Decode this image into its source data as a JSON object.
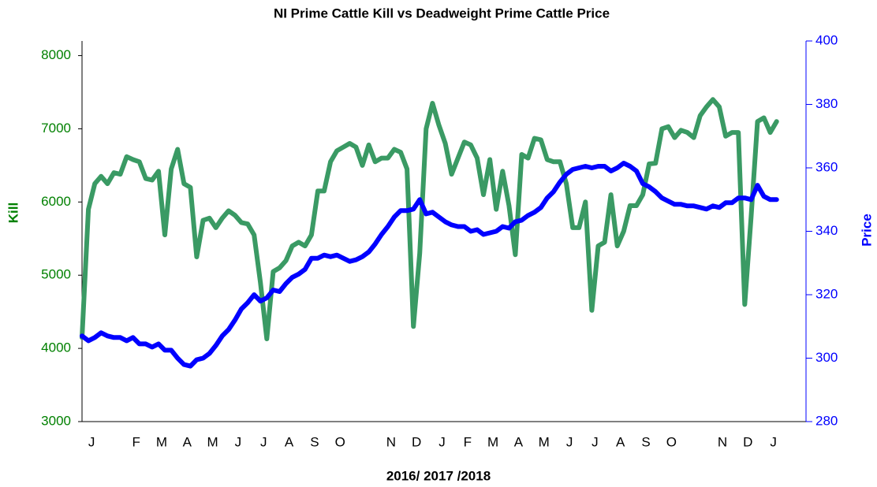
{
  "chart_data": {
    "type": "line",
    "title": "NI Prime Cattle Kill vs Deadweight Prime Cattle Price",
    "xlabel": "2016/ 2017 /2018",
    "ylabel": "Kill",
    "y2label": "Price",
    "categories": [
      null,
      "J",
      null,
      null,
      null,
      null,
      null,
      null,
      "F",
      null,
      null,
      null,
      "M",
      null,
      null,
      null,
      "A",
      null,
      null,
      null,
      "M",
      null,
      null,
      null,
      "J",
      null,
      null,
      null,
      "J",
      null,
      null,
      null,
      "A",
      null,
      null,
      null,
      "S",
      null,
      null,
      null,
      "O",
      null,
      null,
      null,
      null,
      null,
      null,
      null,
      "N",
      null,
      null,
      null,
      "D",
      null,
      null,
      null,
      "J",
      null,
      null,
      null,
      "F",
      null,
      null,
      null,
      "M",
      null,
      null,
      null,
      "A",
      null,
      null,
      null,
      "M",
      null,
      null,
      null,
      "J",
      null,
      null,
      null,
      "J",
      null,
      null,
      null,
      "A",
      null,
      null,
      null,
      "S",
      null,
      null,
      null,
      "O",
      null,
      null,
      null,
      null,
      null,
      null,
      null,
      "N",
      null,
      null,
      null,
      "D",
      null,
      null,
      null,
      "J",
      null
    ],
    "series": [
      {
        "color": "#3a9a64",
        "axis": "y",
        "values": [
          4150,
          5900,
          6250,
          6350,
          6250,
          6400,
          6380,
          6620,
          6580,
          6550,
          6320,
          6300,
          6420,
          5550,
          6450,
          6720,
          6250,
          6200,
          5250,
          5750,
          5780,
          5650,
          5780,
          5880,
          5820,
          5720,
          5700,
          5550,
          4900,
          4130,
          5050,
          5100,
          5200,
          5400,
          5450,
          5400,
          5550,
          6150,
          6150,
          6550,
          6700,
          6750,
          6800,
          6750,
          6500,
          6780,
          6550,
          6600,
          6600,
          6720,
          6680,
          6450,
          4300,
          5300,
          7000,
          7350,
          7050,
          6800,
          6380,
          6600,
          6820,
          6780,
          6600,
          6100,
          6580,
          5900,
          6420,
          5950,
          5280,
          6650,
          6600,
          6870,
          6850,
          6580,
          6550,
          6550,
          6250,
          5650,
          5650,
          6000,
          4520,
          5400,
          5450,
          6100,
          5400,
          5600,
          5950,
          5950,
          6100,
          6520,
          6530,
          7000,
          7030,
          6880,
          6980,
          6950,
          6880,
          7180,
          7300,
          7400,
          7300,
          6900,
          6950,
          6950,
          4600,
          5800,
          7100,
          7150,
          6950,
          7100
        ]
      },
      {
        "color": "#0000ff",
        "axis": "y2",
        "values": [
          307,
          305.5,
          306.5,
          308,
          307,
          306.5,
          306.5,
          305.5,
          306.5,
          304.5,
          304.5,
          303.5,
          304.5,
          302.5,
          302.5,
          300,
          298,
          297.5,
          299.5,
          300,
          301.5,
          304,
          307,
          309,
          312,
          315.5,
          317.5,
          320,
          318,
          319,
          321.5,
          321,
          323.5,
          325.5,
          326.5,
          328,
          331.5,
          331.5,
          332.5,
          332,
          332.5,
          331.5,
          330.5,
          331,
          332,
          333.5,
          336,
          339,
          341.5,
          344.5,
          346.5,
          346.5,
          347,
          350,
          345.5,
          346,
          344.5,
          343,
          342,
          341.5,
          341.5,
          340,
          340.5,
          339,
          339.5,
          340,
          341.5,
          341,
          343,
          343.5,
          345,
          346,
          347.5,
          350.5,
          352.5,
          355.5,
          358,
          359.5,
          360,
          360.5,
          360,
          360.5,
          360.5,
          359,
          360,
          361.5,
          360.5,
          359,
          355,
          354,
          352.5,
          350.5,
          349.5,
          348.5,
          348.5,
          348,
          348,
          347.5,
          347,
          348,
          347.5,
          349,
          349,
          350.5,
          350.5,
          350,
          354.5,
          351,
          350,
          350
        ]
      }
    ],
    "ylim": [
      3000,
      8200
    ],
    "yticks": [
      3000,
      4000,
      5000,
      6000,
      7000,
      8000
    ],
    "y2lim": [
      280,
      400
    ],
    "y2ticks": [
      280,
      300,
      320,
      340,
      360,
      380,
      400
    ],
    "ycolor": "#008000",
    "y2color": "#0000ff"
  }
}
